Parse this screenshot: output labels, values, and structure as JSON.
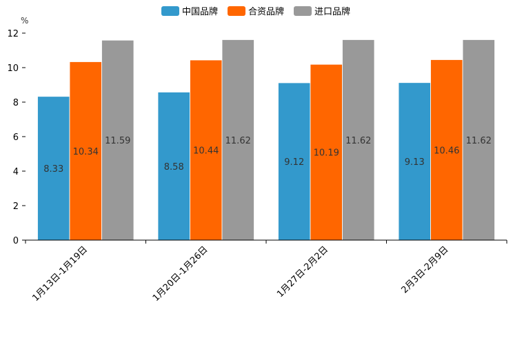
{
  "chart_data": {
    "type": "bar",
    "title": "",
    "xlabel": "",
    "ylabel": "%",
    "ylim": [
      0,
      12
    ],
    "yticks": [
      0,
      2,
      4,
      6,
      8,
      10,
      12
    ],
    "grid": false,
    "legend_position": "top-center",
    "categories": [
      "1月13日-1月19日",
      "1月20日-1月26日",
      "1月27日-2月2日",
      "2月3日-2月9日"
    ],
    "series": [
      {
        "name": "中国品牌",
        "color": "#3399cc",
        "values": [
          8.33,
          8.58,
          9.12,
          9.13
        ],
        "labels": [
          "8.33",
          "8.58",
          "9.12",
          "9.13"
        ]
      },
      {
        "name": "合资品牌",
        "color": "#ff6600",
        "values": [
          10.34,
          10.44,
          10.19,
          10.46
        ],
        "labels": [
          "10.34",
          "10.44",
          "10.19",
          "10.46"
        ]
      },
      {
        "name": "进口品牌",
        "color": "#999999",
        "values": [
          11.59,
          11.62,
          11.62,
          11.62
        ],
        "labels": [
          "11.59",
          "11.62",
          "11.62",
          "11.62"
        ]
      }
    ]
  }
}
